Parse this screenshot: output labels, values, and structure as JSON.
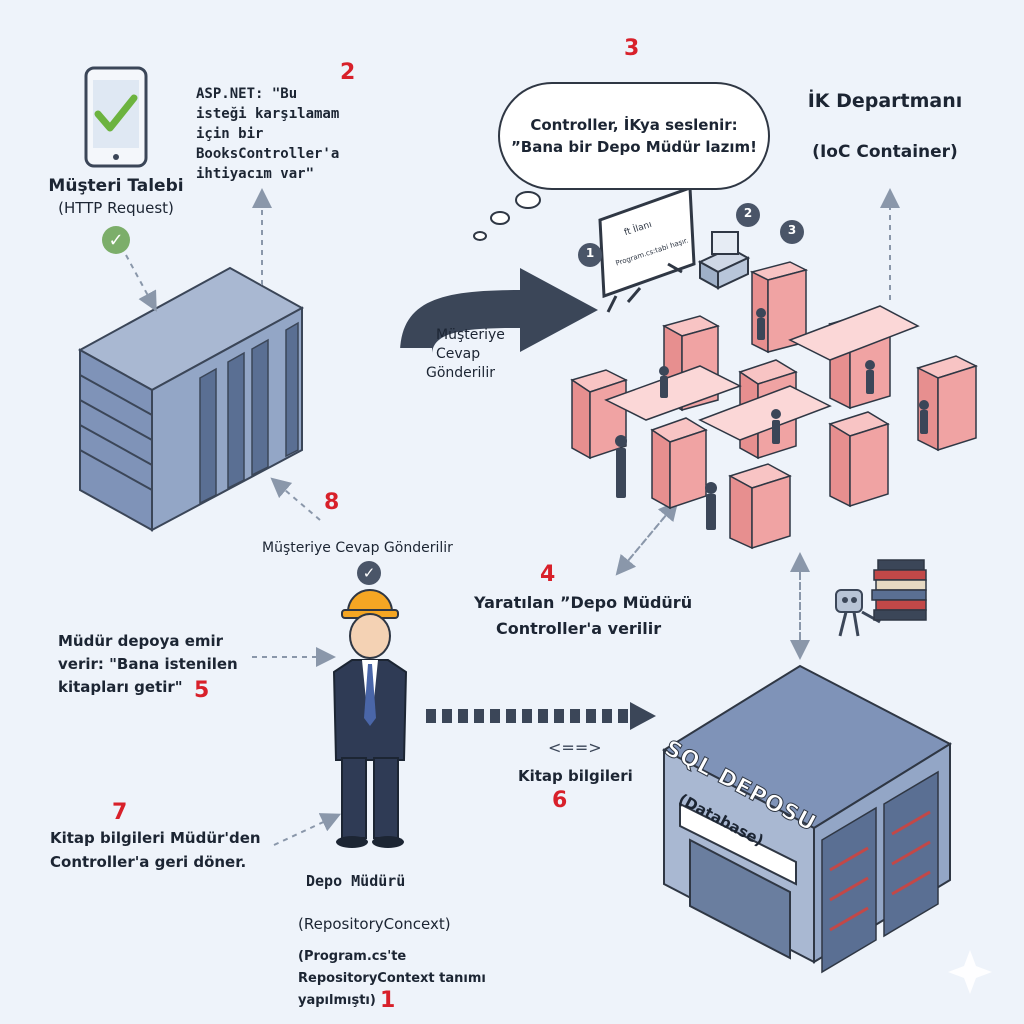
{
  "client": {
    "title": "Müşteri Talebi",
    "subtitle": "(HTTP Request)"
  },
  "aspnet": {
    "number": "2",
    "lines": [
      "ASP.NET: \"Bu",
      "isteği karşılamam",
      "için bir",
      "BooksController'a",
      "ihtiyacım var\""
    ]
  },
  "bubble": {
    "number": "3",
    "lines": [
      "Controller, İKya seslenir:",
      "”Bana bir Depo Müdür lazım!"
    ]
  },
  "hr": {
    "title": "İK Departmanı",
    "subtitle": "(IoC Container)"
  },
  "arrow_label": {
    "lines": [
      "Müşteriye",
      "Cevap",
      "Gönderilir"
    ]
  },
  "whiteboard": {
    "line1": "ft İlanı",
    "line2": "Program.cs:tabi haşır."
  },
  "office_badges": [
    "1",
    "2",
    "3"
  ],
  "response": {
    "number": "8",
    "label": "Müşteriye Cevap Gönderilir"
  },
  "created": {
    "number": "4",
    "line1": "Yaratılan ”Depo Müdürü",
    "line2": "Controller'a verilir"
  },
  "order": {
    "number": "5",
    "lines": [
      "Müdür depoya emir",
      "verir: \"Bana istenilen",
      "kitapları getir\""
    ]
  },
  "book_info": {
    "number": "6",
    "arrows": "<==>",
    "label": "Kitap bilgileri"
  },
  "return_info": {
    "number": "7",
    "lines": [
      "Kitap bilgileri Müdür'den",
      "Controller'a geri döner."
    ]
  },
  "manager": {
    "title": "Depo Müdürü",
    "subtitle": "(RepositoryConcext)",
    "note_lines": [
      "(Program.cs'te",
      "RepositoryContext tanımı",
      "yapılmıştı)"
    ],
    "note_number": "1"
  },
  "database": {
    "title": "SQL DEPOSU",
    "subtitle": "(Database)"
  },
  "colors": {
    "accent_red": "#d8202a",
    "building_blue": "#7f93b8",
    "desk_pink": "#ef9a9a",
    "arrow_dark": "#3b4658",
    "check_green": "#7cae6a"
  }
}
